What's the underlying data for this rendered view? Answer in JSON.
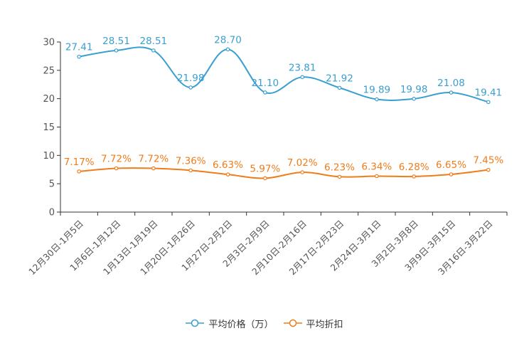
{
  "chart_data": {
    "type": "line",
    "categories": [
      "12月30日-1月5日",
      "1月6日-1月12日",
      "1月13日-1月19日",
      "1月20日-1月26日",
      "1月27日-2月2日",
      "2月3日-2月9日",
      "2月10日-2月16日",
      "2月17日-2月23日",
      "2月24日-3月1日",
      "3月2日-3月8日",
      "3月9日-3月15日",
      "3月16日-3月22日"
    ],
    "series": [
      {
        "name": "平均价格（万）",
        "color": "#3a9fd0",
        "values": [
          27.41,
          28.51,
          28.51,
          21.98,
          28.7,
          21.1,
          23.81,
          21.92,
          19.89,
          19.98,
          21.08,
          19.41
        ],
        "labels": [
          "27.41",
          "28.51",
          "28.51",
          "21.98",
          "28.70",
          "21.10",
          "23.81",
          "21.92",
          "19.89",
          "19.98",
          "21.08",
          "19.41"
        ]
      },
      {
        "name": "平均折扣",
        "color": "#f07c1a",
        "values": [
          7.17,
          7.72,
          7.72,
          7.36,
          6.63,
          5.97,
          7.02,
          6.23,
          6.34,
          6.28,
          6.65,
          7.45
        ],
        "labels": [
          "7.17%",
          "7.72%",
          "7.72%",
          "7.36%",
          "6.63%",
          "5.97%",
          "7.02%",
          "6.23%",
          "6.34%",
          "6.28%",
          "6.65%",
          "7.45%"
        ]
      }
    ],
    "yticks": [
      0,
      5,
      10,
      15,
      20,
      25,
      30
    ],
    "ylim": [
      0,
      30
    ],
    "title": "",
    "xlabel": "",
    "ylabel": "",
    "legend": "bottom-center"
  }
}
